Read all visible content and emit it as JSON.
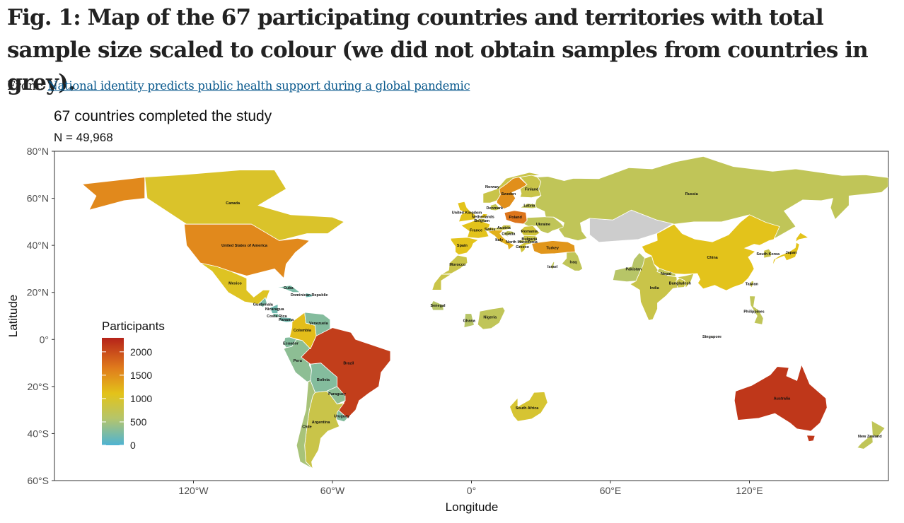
{
  "figure": {
    "title": "Fig. 1: Map of the 67 participating countries and territories with total sample size scaled to colour (we did not obtain samples from countries in grey).",
    "from_label": "From:",
    "source_link": "National identity predicts public health support during a global pandemic"
  },
  "chart_data": {
    "type": "choropleth map",
    "title": "67 countries completed the study",
    "subtitle": "N = 49,968",
    "xlabel": "Longitude",
    "ylabel": "Latitude",
    "xlim": [
      -180,
      180
    ],
    "ylim": [
      -60,
      80
    ],
    "x_ticks": [
      -120,
      -60,
      0,
      60,
      120
    ],
    "x_tick_labels": [
      "120°W",
      "60°W",
      "0°",
      "60°E",
      "120°E"
    ],
    "y_ticks": [
      80,
      60,
      40,
      20,
      0,
      -20,
      -40,
      -60
    ],
    "y_tick_labels": [
      "80°N",
      "60°N",
      "40°N",
      "20°N",
      "0°",
      "20°S",
      "40°S",
      "60°S"
    ],
    "legend": {
      "title": "Participants",
      "placement": "left",
      "range": [
        0,
        2300
      ],
      "ticks": [
        2000,
        1500,
        1000,
        500,
        0
      ],
      "tick_labels": [
        "2000",
        "1500",
        "1000",
        "500",
        "0"
      ],
      "color_stops": [
        "#4eb3d3",
        "#b5c56b",
        "#e3c31a",
        "#e07b1c",
        "#b5231a"
      ]
    },
    "no_data_color": "#cdcdcd",
    "countries": [
      {
        "name": "Canada",
        "lon": -103,
        "lat": 58,
        "participants": 1000
      },
      {
        "name": "United States of America",
        "lon": -98,
        "lat": 40,
        "participants": 1550
      },
      {
        "name": "Mexico",
        "lon": -102,
        "lat": 24,
        "participants": 1050
      },
      {
        "name": "Cuba",
        "lon": -79,
        "lat": 22,
        "participants": 250
      },
      {
        "name": "Dominican Republic",
        "lon": -70,
        "lat": 19,
        "participants": 200
      },
      {
        "name": "Guatemala",
        "lon": -90,
        "lat": 15,
        "participants": 250
      },
      {
        "name": "Nicaragua",
        "lon": -85,
        "lat": 13,
        "participants": 200
      },
      {
        "name": "Costa Rica",
        "lon": -84,
        "lat": 10,
        "participants": 250
      },
      {
        "name": "Panama",
        "lon": -80,
        "lat": 8.5,
        "participants": 200
      },
      {
        "name": "Colombia",
        "lon": -73,
        "lat": 4,
        "participants": 1150
      },
      {
        "name": "Venezuela",
        "lon": -66,
        "lat": 7,
        "participants": 300
      },
      {
        "name": "Ecuador",
        "lon": -78,
        "lat": -1.5,
        "participants": 300
      },
      {
        "name": "Peru",
        "lon": -75,
        "lat": -9,
        "participants": 350
      },
      {
        "name": "Bolivia",
        "lon": -64,
        "lat": -17,
        "participants": 300
      },
      {
        "name": "Brazil",
        "lon": -53,
        "lat": -10,
        "participants": 2100
      },
      {
        "name": "Paraguay",
        "lon": -58,
        "lat": -23,
        "participants": 350
      },
      {
        "name": "Chile",
        "lon": -71,
        "lat": -37,
        "participants": 500
      },
      {
        "name": "Argentina",
        "lon": -65,
        "lat": -35,
        "participants": 800
      },
      {
        "name": "Uruguay",
        "lon": -56,
        "lat": -32.5,
        "participants": 300
      },
      {
        "name": "Norway",
        "lon": 9,
        "lat": 65,
        "participants": 800
      },
      {
        "name": "Sweden",
        "lon": 16,
        "lat": 62,
        "participants": 1500
      },
      {
        "name": "Finland",
        "lon": 26,
        "lat": 64,
        "participants": 800
      },
      {
        "name": "Denmark",
        "lon": 10,
        "lat": 56,
        "participants": 750
      },
      {
        "name": "Latvia",
        "lon": 25,
        "lat": 57,
        "participants": 700
      },
      {
        "name": "United Kingdom",
        "lon": -2,
        "lat": 54,
        "participants": 1100
      },
      {
        "name": "Netherlands",
        "lon": 5,
        "lat": 52.2,
        "participants": 1100
      },
      {
        "name": "Belgium",
        "lon": 4.5,
        "lat": 50.6,
        "participants": 800
      },
      {
        "name": "Poland",
        "lon": 19,
        "lat": 52,
        "participants": 1700
      },
      {
        "name": "Austria",
        "lon": 14,
        "lat": 47.5,
        "participants": 800
      },
      {
        "name": "Ukraine",
        "lon": 31,
        "lat": 49,
        "participants": 700
      },
      {
        "name": "France",
        "lon": 2,
        "lat": 46.5,
        "participants": 1100
      },
      {
        "name": "Swiss",
        "lon": 8,
        "lat": 47,
        "participants": 900
      },
      {
        "name": "Romania",
        "lon": 25,
        "lat": 46,
        "participants": 900
      },
      {
        "name": "Italy",
        "lon": 12,
        "lat": 42.5,
        "participants": 1250
      },
      {
        "name": "Croatia",
        "lon": 16,
        "lat": 45,
        "participants": 700
      },
      {
        "name": "Bulgaria",
        "lon": 25,
        "lat": 42.8,
        "participants": 800
      },
      {
        "name": "North Macedonia",
        "lon": 21.7,
        "lat": 41.6,
        "participants": 800
      },
      {
        "name": "Spain",
        "lon": -4,
        "lat": 40,
        "participants": 1100
      },
      {
        "name": "Greece",
        "lon": 22,
        "lat": 39.5,
        "participants": 900
      },
      {
        "name": "Turkey",
        "lon": 35,
        "lat": 39,
        "participants": 1450
      },
      {
        "name": "Israel",
        "lon": 35,
        "lat": 31,
        "participants": 700
      },
      {
        "name": "Iraq",
        "lon": 44,
        "lat": 33,
        "participants": 700
      },
      {
        "name": "Morocco",
        "lon": -6,
        "lat": 32,
        "participants": 800
      },
      {
        "name": "Senegal",
        "lon": -14.5,
        "lat": 14.5,
        "participants": 600
      },
      {
        "name": "Ghana",
        "lon": -1,
        "lat": 8,
        "participants": 600
      },
      {
        "name": "Nigeria",
        "lon": 8,
        "lat": 9.5,
        "participants": 700
      },
      {
        "name": "South Africa",
        "lon": 24,
        "lat": -29,
        "participants": 950
      },
      {
        "name": "Russia",
        "lon": 95,
        "lat": 62,
        "participants": 700
      },
      {
        "name": "Pakistan",
        "lon": 70,
        "lat": 30,
        "participants": 600
      },
      {
        "name": "India",
        "lon": 79,
        "lat": 22,
        "participants": 800
      },
      {
        "name": "Nepal",
        "lon": 84,
        "lat": 28,
        "participants": 700
      },
      {
        "name": "Bangladesh",
        "lon": 90,
        "lat": 24,
        "participants": 800
      },
      {
        "name": "China",
        "lon": 104,
        "lat": 35,
        "participants": 1100
      },
      {
        "name": "South Korea",
        "lon": 128,
        "lat": 36.5,
        "participants": 800
      },
      {
        "name": "Japan",
        "lon": 138,
        "lat": 37,
        "participants": 1100
      },
      {
        "name": "Taiwan",
        "lon": 121,
        "lat": 23.7,
        "participants": 800
      },
      {
        "name": "Philippines",
        "lon": 122,
        "lat": 12,
        "participants": 700
      },
      {
        "name": "Singapore",
        "lon": 103.8,
        "lat": 1.3,
        "participants": 600
      },
      {
        "name": "Australia",
        "lon": 134,
        "lat": -25,
        "participants": 2150
      },
      {
        "name": "New Zealand",
        "lon": 172,
        "lat": -41,
        "participants": 700
      }
    ]
  }
}
